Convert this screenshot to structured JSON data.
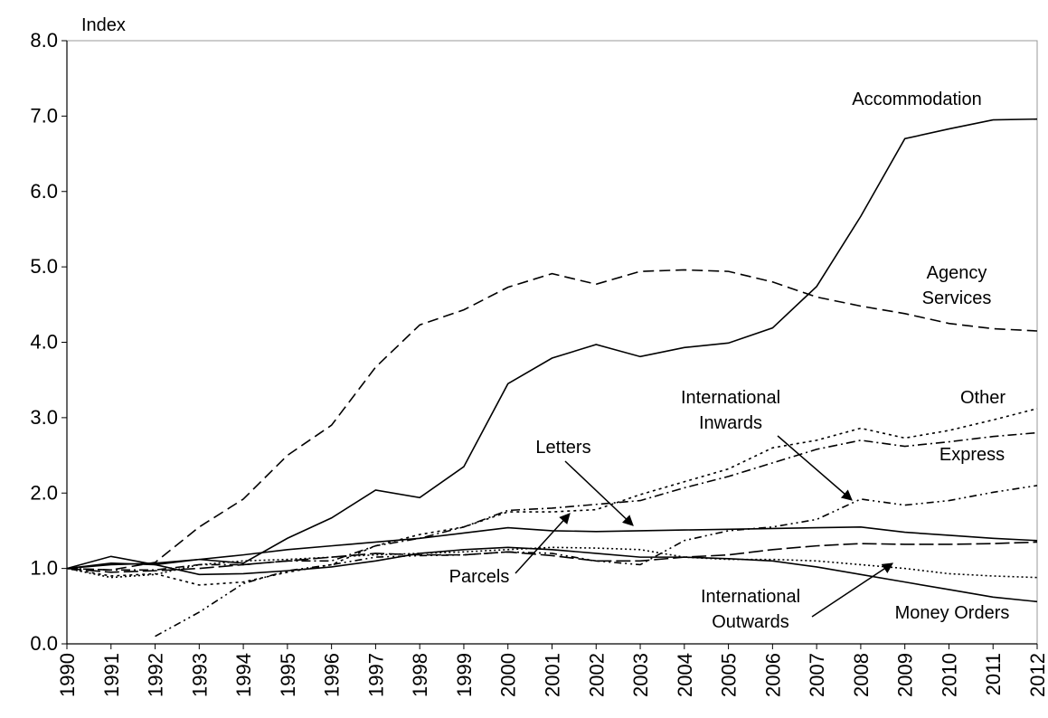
{
  "chart_data": {
    "type": "line",
    "y_axis_label": "Index",
    "x": [
      1990,
      1991,
      1992,
      1993,
      1994,
      1995,
      1996,
      1997,
      1998,
      1999,
      2000,
      2001,
      2002,
      2003,
      2004,
      2005,
      2006,
      2007,
      2008,
      2009,
      2010,
      2011,
      2012
    ],
    "xlim": [
      1990,
      2012
    ],
    "xticks": [
      1990,
      1991,
      1992,
      1993,
      1994,
      1995,
      1996,
      1997,
      1998,
      1999,
      2000,
      2001,
      2002,
      2003,
      2004,
      2005,
      2006,
      2007,
      2008,
      2009,
      2010,
      2011,
      2012
    ],
    "ylim": [
      0,
      8
    ],
    "yticks": [
      {
        "value": 0,
        "label": "0.0"
      },
      {
        "value": 1,
        "label": "1.0"
      },
      {
        "value": 2,
        "label": "2.0"
      },
      {
        "value": 3,
        "label": "3.0"
      },
      {
        "value": 4,
        "label": "4.0"
      },
      {
        "value": 5,
        "label": "5.0"
      },
      {
        "value": 6,
        "label": "6.0"
      },
      {
        "value": 7,
        "label": "7.0"
      },
      {
        "value": 8,
        "label": "8.0"
      }
    ],
    "grid": false,
    "series": [
      {
        "name": "Accommodation",
        "color": "#000000",
        "dash": "none",
        "values": [
          1.0,
          1.07,
          1.05,
          1.12,
          1.07,
          1.4,
          1.67,
          2.04,
          1.94,
          2.35,
          3.45,
          3.79,
          3.97,
          3.81,
          3.93,
          3.99,
          4.19,
          4.74,
          5.67,
          6.7,
          6.83,
          6.95,
          6.96
        ]
      },
      {
        "name": "Agency Services",
        "color": "#000000",
        "dash": "12,6",
        "values": [
          1.0,
          0.98,
          1.08,
          1.55,
          1.92,
          2.5,
          2.9,
          3.67,
          4.23,
          4.43,
          4.73,
          4.91,
          4.77,
          4.94,
          4.96,
          4.94,
          4.8,
          4.6,
          4.48,
          4.38,
          4.25,
          4.18,
          4.15
        ]
      },
      {
        "name": "Other",
        "color": "#000000",
        "dash": "3,4",
        "values": [
          1.0,
          0.9,
          0.93,
          0.78,
          0.82,
          0.95,
          1.05,
          1.3,
          1.45,
          1.55,
          1.75,
          1.75,
          1.78,
          1.98,
          2.15,
          2.32,
          2.6,
          2.7,
          2.86,
          2.73,
          2.83,
          2.97,
          3.12
        ]
      },
      {
        "name": "Express",
        "color": "#000000",
        "dash": "10,4,2,4",
        "values": [
          1.0,
          0.98,
          0.98,
          1.05,
          1.05,
          1.1,
          1.1,
          1.3,
          1.4,
          1.55,
          1.77,
          1.8,
          1.85,
          1.9,
          2.07,
          2.22,
          2.4,
          2.58,
          2.7,
          2.62,
          2.68,
          2.75,
          2.8
        ]
      },
      {
        "name": "International Inwards",
        "color": "#000000",
        "dash": "8,4,2,4,2,4",
        "values": [
          null,
          null,
          0.1,
          0.42,
          0.8,
          0.97,
          1.05,
          1.15,
          1.17,
          1.18,
          1.22,
          1.2,
          1.1,
          1.05,
          1.37,
          1.5,
          1.55,
          1.65,
          1.92,
          1.84,
          1.9,
          2.01,
          2.1
        ]
      },
      {
        "name": "Letters",
        "color": "#000000",
        "dash": "none",
        "values": [
          1.0,
          1.05,
          1.07,
          1.12,
          1.18,
          1.25,
          1.3,
          1.35,
          1.4,
          1.47,
          1.54,
          1.5,
          1.49,
          1.5,
          1.51,
          1.52,
          1.53,
          1.54,
          1.55,
          1.48,
          1.44,
          1.4,
          1.37
        ]
      },
      {
        "name": "Parcels",
        "color": "#000000",
        "dash": "16,5",
        "values": [
          1.0,
          0.95,
          0.97,
          1.0,
          1.05,
          1.1,
          1.15,
          1.2,
          1.18,
          1.18,
          1.22,
          1.17,
          1.1,
          1.1,
          1.15,
          1.18,
          1.25,
          1.3,
          1.33,
          1.32,
          1.32,
          1.33,
          1.35
        ]
      },
      {
        "name": "International Outwards",
        "color": "#000000",
        "dash": "2,3",
        "values": [
          1.0,
          0.88,
          0.92,
          1.05,
          1.1,
          1.12,
          1.15,
          1.18,
          1.2,
          1.22,
          1.25,
          1.28,
          1.27,
          1.25,
          1.15,
          1.12,
          1.12,
          1.1,
          1.05,
          1.0,
          0.93,
          0.9,
          0.88
        ]
      },
      {
        "name": "Money Orders",
        "color": "#000000",
        "dash": "none",
        "values": [
          1.0,
          1.16,
          1.05,
          0.92,
          0.93,
          0.97,
          1.02,
          1.1,
          1.2,
          1.25,
          1.28,
          1.25,
          1.2,
          1.15,
          1.15,
          1.13,
          1.1,
          1.02,
          0.92,
          0.82,
          0.72,
          0.62,
          0.56
        ]
      }
    ]
  }
}
